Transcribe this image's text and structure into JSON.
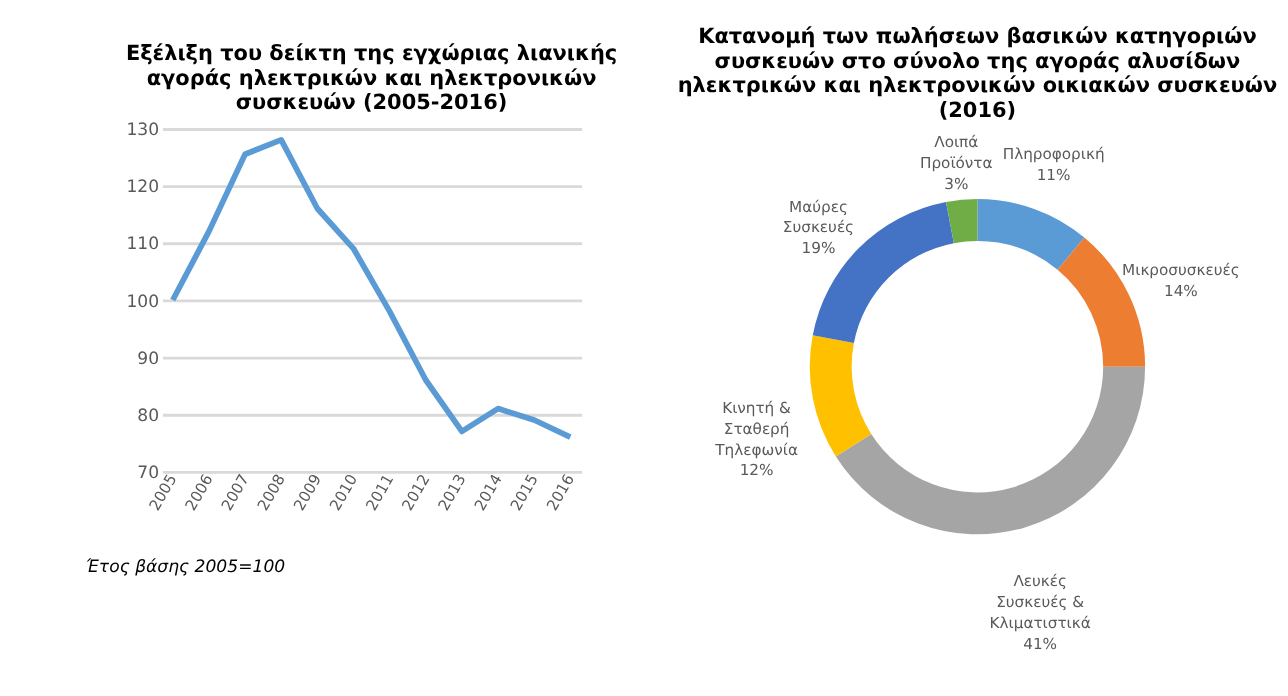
{
  "chart_data": [
    {
      "type": "line",
      "title": "Εξέλιξη του δείκτη της εγχώριας λιανικής αγοράς ηλεκτρικών και ηλεκτρονικών συσκευών (2005-2016)",
      "categories": [
        "2005",
        "2006",
        "2007",
        "2008",
        "2009",
        "2010",
        "2011",
        "2012",
        "2013",
        "2014",
        "2015",
        "2016"
      ],
      "series": [
        {
          "color": "#5b9bd5",
          "values": [
            100,
            112,
            125.5,
            128,
            116,
            109,
            98,
            86,
            77,
            81,
            79,
            76
          ]
        }
      ],
      "ylim": [
        70,
        130
      ],
      "yticks": [
        70,
        80,
        90,
        100,
        110,
        120,
        130
      ],
      "grid": "y",
      "marker": "none",
      "annotations": [
        "Έτος βάσης 2005=100"
      ]
    },
    {
      "type": "donut",
      "title": "Κατανομή των πωλήσεων βασικών κατηγοριών συσκευών στο σύνολο της αγοράς αλυσίδων ηλεκτρικών και ηλεκτρονικών οικιακών συσκευών (2016)",
      "categories": [
        "Πληροφορική",
        "Μικροσυσκευές",
        "Λευκές Συσκευές & Κλιματιστικά",
        "Κινητή & Σταθερή Τηλεφωνία",
        "Μαύρες Συσκευές",
        "Λοιπά Προϊόντα"
      ],
      "values": [
        11,
        14,
        41,
        12,
        19,
        3
      ],
      "value_labels": [
        "11%",
        "14%",
        "41%",
        "12%",
        "19%",
        "3%"
      ],
      "colors": [
        "#5b9bd5",
        "#ed7d31",
        "#a5a5a5",
        "#ffc000",
        "#4472c4",
        "#70ad47"
      ]
    }
  ]
}
